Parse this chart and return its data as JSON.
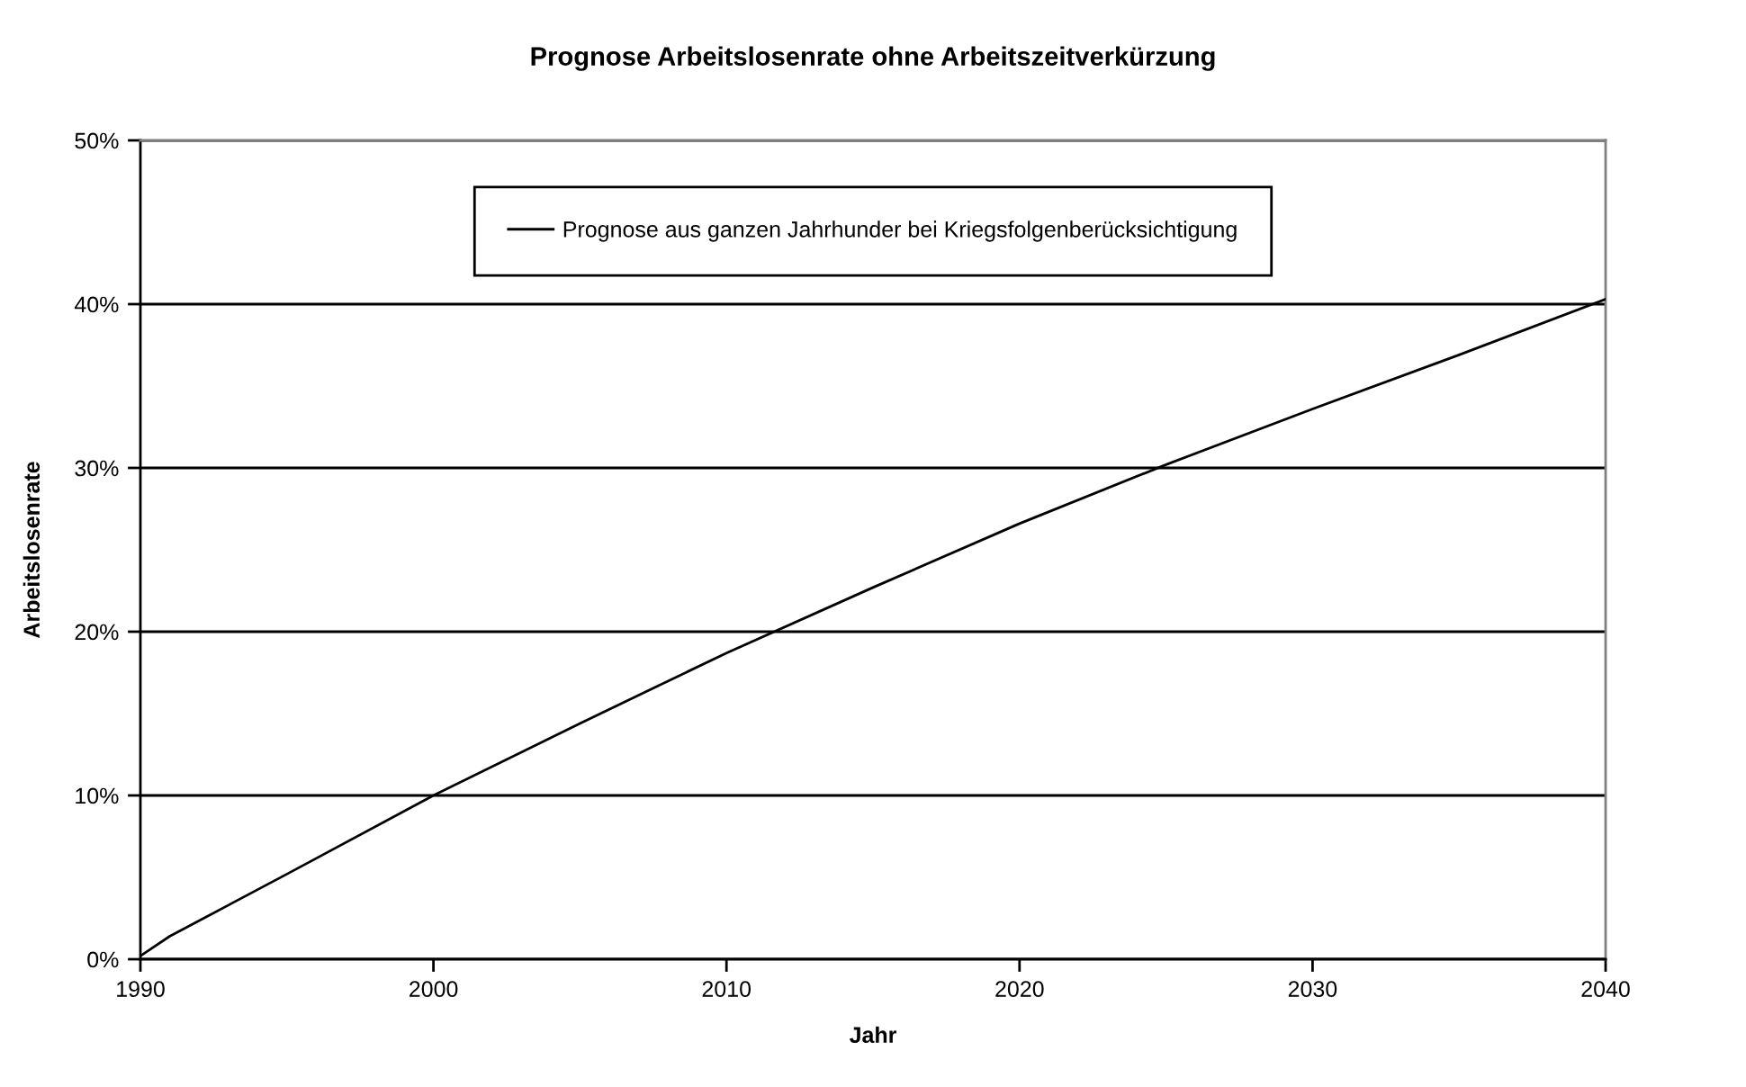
{
  "chart_data": {
    "type": "line",
    "title": "Prognose Arbeitslosenrate ohne Arbeitszeitverkürzung",
    "xlabel": "Jahr",
    "ylabel": "Arbeitslosenrate",
    "series": [
      {
        "name": "Prognose aus ganzen Jahrhunder bei Kriegsfolgenberücksichtigung",
        "color": "#000000",
        "x": [
          1990,
          1991,
          1995,
          2000,
          2005,
          2010,
          2015,
          2020,
          2025,
          2030,
          2035,
          2040
        ],
        "values": [
          0.2,
          1.4,
          5.2,
          10.0,
          14.4,
          18.7,
          22.7,
          26.6,
          30.2,
          33.6,
          36.9,
          40.3
        ]
      }
    ],
    "xlim": [
      1990,
      2040
    ],
    "xticks": [
      1990,
      2000,
      2010,
      2020,
      2030,
      2040
    ],
    "ylim": [
      0,
      50
    ],
    "yticks": [
      {
        "value": 0,
        "label": "0%"
      },
      {
        "value": 10,
        "label": "10%"
      },
      {
        "value": 20,
        "label": "20%"
      },
      {
        "value": 30,
        "label": "30%"
      },
      {
        "value": 40,
        "label": "40%"
      },
      {
        "value": 50,
        "label": "50%"
      }
    ],
    "grid": "y",
    "legend": "top",
    "marker": "none",
    "line_style": "solid"
  }
}
